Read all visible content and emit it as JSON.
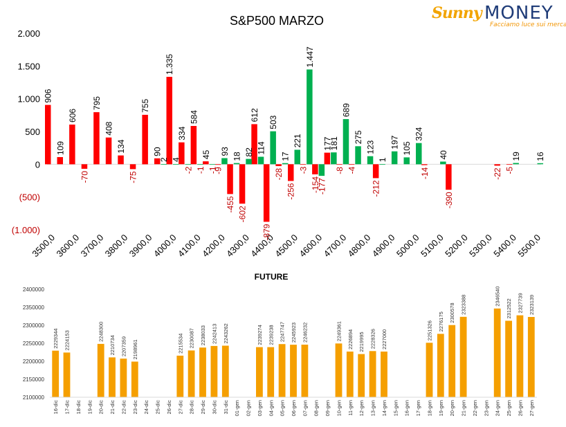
{
  "logo": {
    "brand_left": "Sunny",
    "brand_right": "MONEY",
    "tagline": "Facciamo luce sui mercati",
    "brand_color": "#f2a400",
    "text_color": "#1f3c78"
  },
  "colors": {
    "red": "#ff0000",
    "green": "#00b050",
    "orange": "#f59f00",
    "axis_text": "#000000",
    "neg_text": "#c00000"
  },
  "chart_data": [
    {
      "type": "bar",
      "title": "S&P500 MARZO",
      "ylim": [
        -1000,
        2000
      ],
      "yticks": [
        {
          "value": 2000,
          "label": "2.000"
        },
        {
          "value": 1500,
          "label": "1.500"
        },
        {
          "value": 1000,
          "label": "1.000"
        },
        {
          "value": 500,
          "label": "500"
        },
        {
          "value": 0,
          "label": "0"
        },
        {
          "value": -500,
          "label": "(500)"
        },
        {
          "value": -1000,
          "label": "(1.000)"
        }
      ],
      "x_tick_labels": [
        "3500,0",
        "3600,0",
        "3700,0",
        "3800,0",
        "3900,0",
        "4000,0",
        "4100,0",
        "4200,0",
        "4300,0",
        "4400,0",
        "4500,0",
        "4600,0",
        "4700,0",
        "4800,0",
        "4900,0",
        "5000,0",
        "5100,0",
        "5200,0",
        "5300,0",
        "5400,0",
        "5500,0"
      ],
      "x_range": [
        3500,
        5500
      ],
      "series": [
        {
          "color": "red",
          "points": [
            {
              "x": 3500,
              "y": 906,
              "label": "906"
            },
            {
              "x": 3550,
              "y": 109,
              "label": "109"
            },
            {
              "x": 3600,
              "y": 606,
              "label": "606"
            },
            {
              "x": 3650,
              "y": -70,
              "label": "-70"
            },
            {
              "x": 3700,
              "y": 795,
              "label": "795"
            },
            {
              "x": 3750,
              "y": 408,
              "label": "408"
            },
            {
              "x": 3800,
              "y": 134,
              "label": "134"
            },
            {
              "x": 3850,
              "y": -75,
              "label": "-75"
            },
            {
              "x": 3900,
              "y": 755,
              "label": "755"
            },
            {
              "x": 3950,
              "y": 90,
              "label": "90"
            },
            {
              "x": 4000,
              "y": 1335,
              "label": "1.335"
            },
            {
              "x": 4050,
              "y": 334,
              "label": "334"
            },
            {
              "x": 4100,
              "y": 584,
              "label": "584"
            },
            {
              "x": 4150,
              "y": 45,
              "label": "45"
            },
            {
              "x": 4200,
              "y": -9,
              "label": "-9"
            },
            {
              "x": 4250,
              "y": -455,
              "label": "-455"
            },
            {
              "x": 4300,
              "y": -602,
              "label": "-602"
            },
            {
              "x": 4350,
              "y": 612,
              "label": "612"
            },
            {
              "x": 4400,
              "y": -879,
              "label": "-879"
            },
            {
              "x": 4450,
              "y": -28,
              "label": "-28"
            },
            {
              "x": 4500,
              "y": -256,
              "label": "-256"
            },
            {
              "x": 4550,
              "y": -3,
              "label": "-3"
            },
            {
              "x": 4600,
              "y": -154,
              "label": "-154"
            },
            {
              "x": 4650,
              "y": 177,
              "label": "177"
            },
            {
              "x": 4700,
              "y": -8,
              "label": "-8"
            },
            {
              "x": 4750,
              "y": -4,
              "label": "-4"
            },
            {
              "x": 4850,
              "y": -212,
              "label": "-212"
            },
            {
              "x": 5050,
              "y": -14,
              "label": "-14"
            },
            {
              "x": 5150,
              "y": -390,
              "label": "-390"
            },
            {
              "x": 5350,
              "y": -22,
              "label": "-22"
            },
            {
              "x": 5400,
              "y": -5,
              "label": "-5"
            }
          ]
        },
        {
          "color": "green",
          "points": [
            {
              "x": 3950,
              "y": 2,
              "label": "2"
            },
            {
              "x": 4000,
              "y": 4,
              "label": "4"
            },
            {
              "x": 4050,
              "y": -2,
              "label": "-2"
            },
            {
              "x": 4100,
              "y": -1,
              "label": "-1"
            },
            {
              "x": 4150,
              "y": -1,
              "label": "-1"
            },
            {
              "x": 4200,
              "y": 93,
              "label": "93"
            },
            {
              "x": 4250,
              "y": 18,
              "label": "18"
            },
            {
              "x": 4300,
              "y": 82,
              "label": "82"
            },
            {
              "x": 4350,
              "y": 114,
              "label": "114"
            },
            {
              "x": 4400,
              "y": 503,
              "label": "503"
            },
            {
              "x": 4450,
              "y": 17,
              "label": "17"
            },
            {
              "x": 4500,
              "y": 221,
              "label": "221"
            },
            {
              "x": 4550,
              "y": 1447,
              "label": "1.447"
            },
            {
              "x": 4600,
              "y": -177,
              "label": "-177"
            },
            {
              "x": 4650,
              "y": 181,
              "label": "181"
            },
            {
              "x": 4700,
              "y": 689,
              "label": "689"
            },
            {
              "x": 4750,
              "y": 275,
              "label": "275"
            },
            {
              "x": 4800,
              "y": 123,
              "label": "123"
            },
            {
              "x": 4850,
              "y": 1,
              "label": "1"
            },
            {
              "x": 4900,
              "y": 197,
              "label": "197"
            },
            {
              "x": 4950,
              "y": 105,
              "label": "105"
            },
            {
              "x": 5000,
              "y": 324,
              "label": "324"
            },
            {
              "x": 5100,
              "y": 40,
              "label": "40"
            },
            {
              "x": 5400,
              "y": 19,
              "label": "19"
            },
            {
              "x": 5500,
              "y": 16,
              "label": "16"
            }
          ]
        }
      ],
      "grid": false,
      "legend": "none"
    },
    {
      "type": "bar",
      "title": "FUTURE",
      "ylim": [
        2100000,
        2400000
      ],
      "yticks": [
        "2400000",
        "2350000",
        "2300000",
        "2250000",
        "2200000",
        "2150000",
        "2100000"
      ],
      "categories": [
        "16-dic",
        "17-dic",
        "18-dic",
        "19-dic",
        "20-dic",
        "21-dic",
        "22-dic",
        "23-dic",
        "24-dic",
        "25-dic",
        "26-dic",
        "27-dic",
        "28-dic",
        "29-dic",
        "30-dic",
        "31-dic",
        "01-gen",
        "02-gen",
        "03-gen",
        "04-gen",
        "05-gen",
        "06-gen",
        "07-gen",
        "08-gen",
        "09-gen",
        "10-gen",
        "11-gen",
        "12-gen",
        "13-gen",
        "14-gen",
        "15-gen",
        "16-gen",
        "17-gen",
        "18-gen",
        "19-gen",
        "20-gen",
        "21-gen",
        "22-gen",
        "23-gen",
        "24-gen",
        "25-gen",
        "26-gen",
        "27-gen"
      ],
      "values": [
        2229344,
        2224153,
        null,
        null,
        2248300,
        2210734,
        2207359,
        2198961,
        null,
        null,
        null,
        2215534,
        2230087,
        2238033,
        2242413,
        2243262,
        null,
        null,
        2239274,
        2239238,
        2247747,
        2245923,
        2246232,
        null,
        null,
        2249361,
        2226894,
        2219995,
        2228326,
        2227000,
        null,
        null,
        null,
        2251326,
        2276175,
        2300578,
        2323388,
        null,
        null,
        2346540,
        2312522,
        2327739,
        2323139
      ],
      "grid": false,
      "legend": "none"
    }
  ]
}
